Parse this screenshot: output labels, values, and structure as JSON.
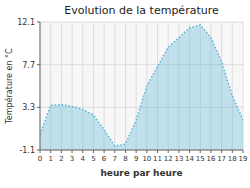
{
  "chart_data": {
    "type": "area",
    "title": "Evolution de la température",
    "xlabel": "heure par heure",
    "ylabel": "Température en °C",
    "x": [
      0,
      1,
      2,
      3,
      4,
      5,
      6,
      7,
      8,
      9,
      10,
      11,
      12,
      13,
      14,
      15,
      16,
      17,
      18,
      19
    ],
    "values": [
      0.5,
      3.5,
      3.6,
      3.4,
      3.1,
      2.5,
      1.0,
      -0.7,
      -0.5,
      2.0,
      5.5,
      7.5,
      9.5,
      10.5,
      11.5,
      11.8,
      10.5,
      8.0,
      4.5,
      2.0
    ],
    "xlim": [
      0,
      19
    ],
    "xticks": [
      0,
      1,
      2,
      3,
      4,
      5,
      6,
      7,
      8,
      9,
      10,
      11,
      12,
      13,
      14,
      15,
      16,
      17,
      18,
      19
    ],
    "ylim": [
      -1.1,
      12.1
    ],
    "yticks": [
      -1.1,
      3.3,
      7.7,
      12.1
    ],
    "color": "#5ab4d6",
    "line_style": "dotted",
    "grid": true
  }
}
